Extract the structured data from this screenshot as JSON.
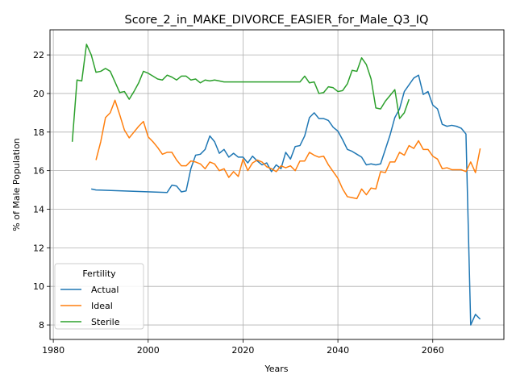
{
  "chart_data": {
    "type": "line",
    "title": "Score_2_in_MAKE_DIVORCE_EASIER_for_Male_Q3_IQ",
    "xlabel": "Years",
    "ylabel": "% of Male Population",
    "xlim": [
      1979.3,
      2075.0
    ],
    "ylim": [
      7.25,
      23.3
    ],
    "xticks": [
      1980,
      2000,
      2020,
      2040,
      2060
    ],
    "yticks": [
      8,
      10,
      12,
      14,
      16,
      18,
      20,
      22
    ],
    "grid": true,
    "legend": {
      "title": "Fertility",
      "placement": "lower-left"
    },
    "series": [
      {
        "name": "Actual",
        "color": "#1f77b4",
        "points": [
          [
            1988,
            15.05
          ],
          [
            1989,
            15.0
          ],
          [
            2004,
            14.87
          ],
          [
            2005,
            15.25
          ],
          [
            2006,
            15.2
          ],
          [
            2007,
            14.9
          ],
          [
            2008,
            14.95
          ],
          [
            2009,
            16.1
          ],
          [
            2010,
            16.8
          ],
          [
            2011,
            16.85
          ],
          [
            2012,
            17.1
          ],
          [
            2013,
            17.8
          ],
          [
            2014,
            17.5
          ],
          [
            2015,
            16.9
          ],
          [
            2016,
            17.1
          ],
          [
            2017,
            16.7
          ],
          [
            2018,
            16.9
          ],
          [
            2019,
            16.7
          ],
          [
            2020,
            16.7
          ],
          [
            2021,
            16.4
          ],
          [
            2022,
            16.75
          ],
          [
            2023,
            16.5
          ],
          [
            2024,
            16.3
          ],
          [
            2025,
            16.4
          ],
          [
            2026,
            15.95
          ],
          [
            2027,
            16.3
          ],
          [
            2028,
            16.1
          ],
          [
            2029,
            16.95
          ],
          [
            2030,
            16.6
          ],
          [
            2031,
            17.25
          ],
          [
            2032,
            17.3
          ],
          [
            2033,
            17.8
          ],
          [
            2034,
            18.75
          ],
          [
            2035,
            19.0
          ],
          [
            2036,
            18.7
          ],
          [
            2037,
            18.7
          ],
          [
            2038,
            18.6
          ],
          [
            2039,
            18.25
          ],
          [
            2040,
            18.05
          ],
          [
            2041,
            17.6
          ],
          [
            2042,
            17.1
          ],
          [
            2043,
            17.0
          ],
          [
            2044,
            16.85
          ],
          [
            2045,
            16.7
          ],
          [
            2046,
            16.3
          ],
          [
            2047,
            16.35
          ],
          [
            2048,
            16.3
          ],
          [
            2049,
            16.35
          ],
          [
            2050,
            17.1
          ],
          [
            2051,
            17.85
          ],
          [
            2052,
            18.75
          ],
          [
            2053,
            19.2
          ],
          [
            2054,
            20.1
          ],
          [
            2055,
            20.45
          ],
          [
            2056,
            20.8
          ],
          [
            2057,
            20.95
          ],
          [
            2058,
            19.95
          ],
          [
            2059,
            20.1
          ],
          [
            2060,
            19.4
          ],
          [
            2061,
            19.2
          ],
          [
            2062,
            18.4
          ],
          [
            2063,
            18.3
          ],
          [
            2064,
            18.35
          ],
          [
            2065,
            18.3
          ],
          [
            2066,
            18.2
          ],
          [
            2067,
            17.9
          ],
          [
            2068,
            8.0
          ],
          [
            2069,
            8.55
          ],
          [
            2070,
            8.3
          ]
        ]
      },
      {
        "name": "Ideal",
        "color": "#ff7f0e",
        "points": [
          [
            1989,
            16.55
          ],
          [
            1990,
            17.5
          ],
          [
            1991,
            18.75
          ],
          [
            1992,
            19.0
          ],
          [
            1993,
            19.65
          ],
          [
            1994,
            18.9
          ],
          [
            1995,
            18.1
          ],
          [
            1996,
            17.7
          ],
          [
            1997,
            18.0
          ],
          [
            1998,
            18.3
          ],
          [
            1999,
            18.55
          ],
          [
            2000,
            17.75
          ],
          [
            2001,
            17.5
          ],
          [
            2002,
            17.2
          ],
          [
            2003,
            16.85
          ],
          [
            2004,
            16.95
          ],
          [
            2005,
            16.95
          ],
          [
            2006,
            16.55
          ],
          [
            2007,
            16.25
          ],
          [
            2008,
            16.25
          ],
          [
            2009,
            16.5
          ],
          [
            2010,
            16.45
          ],
          [
            2011,
            16.35
          ],
          [
            2012,
            16.1
          ],
          [
            2013,
            16.45
          ],
          [
            2014,
            16.35
          ],
          [
            2015,
            16.0
          ],
          [
            2016,
            16.1
          ],
          [
            2017,
            15.65
          ],
          [
            2018,
            15.95
          ],
          [
            2019,
            15.7
          ],
          [
            2020,
            16.6
          ],
          [
            2021,
            16.0
          ],
          [
            2022,
            16.4
          ],
          [
            2023,
            16.55
          ],
          [
            2024,
            16.45
          ],
          [
            2025,
            16.2
          ],
          [
            2026,
            16.1
          ],
          [
            2027,
            15.95
          ],
          [
            2028,
            16.25
          ],
          [
            2029,
            16.15
          ],
          [
            2030,
            16.25
          ],
          [
            2031,
            16.0
          ],
          [
            2032,
            16.5
          ],
          [
            2033,
            16.5
          ],
          [
            2034,
            16.95
          ],
          [
            2035,
            16.8
          ],
          [
            2036,
            16.7
          ],
          [
            2037,
            16.75
          ],
          [
            2038,
            16.3
          ],
          [
            2039,
            15.95
          ],
          [
            2040,
            15.6
          ],
          [
            2041,
            15.05
          ],
          [
            2042,
            14.65
          ],
          [
            2043,
            14.6
          ],
          [
            2044,
            14.55
          ],
          [
            2045,
            15.05
          ],
          [
            2046,
            14.75
          ],
          [
            2047,
            15.1
          ],
          [
            2048,
            15.05
          ],
          [
            2049,
            15.95
          ],
          [
            2050,
            15.9
          ],
          [
            2051,
            16.45
          ],
          [
            2052,
            16.45
          ],
          [
            2053,
            16.95
          ],
          [
            2054,
            16.8
          ],
          [
            2055,
            17.3
          ],
          [
            2056,
            17.15
          ],
          [
            2057,
            17.55
          ],
          [
            2058,
            17.1
          ],
          [
            2059,
            17.1
          ],
          [
            2060,
            16.75
          ],
          [
            2061,
            16.6
          ],
          [
            2062,
            16.1
          ],
          [
            2063,
            16.15
          ],
          [
            2064,
            16.05
          ],
          [
            2065,
            16.05
          ],
          [
            2066,
            16.05
          ],
          [
            2067,
            15.95
          ],
          [
            2068,
            16.45
          ],
          [
            2069,
            15.9
          ],
          [
            2070,
            17.15
          ]
        ]
      },
      {
        "name": "Sterile",
        "color": "#2ca02c",
        "points": [
          [
            1984,
            17.5
          ],
          [
            1985,
            20.7
          ],
          [
            1986,
            20.65
          ],
          [
            1987,
            22.55
          ],
          [
            1988,
            22.0
          ],
          [
            1989,
            21.1
          ],
          [
            1990,
            21.15
          ],
          [
            1991,
            21.3
          ],
          [
            1992,
            21.15
          ],
          [
            1993,
            20.6
          ],
          [
            1994,
            20.05
          ],
          [
            1995,
            20.1
          ],
          [
            1996,
            19.7
          ],
          [
            1997,
            20.1
          ],
          [
            1998,
            20.55
          ],
          [
            1999,
            21.15
          ],
          [
            2000,
            21.05
          ],
          [
            2001,
            20.9
          ],
          [
            2002,
            20.75
          ],
          [
            2003,
            20.7
          ],
          [
            2004,
            20.95
          ],
          [
            2005,
            20.85
          ],
          [
            2006,
            20.7
          ],
          [
            2007,
            20.9
          ],
          [
            2008,
            20.9
          ],
          [
            2009,
            20.7
          ],
          [
            2010,
            20.75
          ],
          [
            2011,
            20.55
          ],
          [
            2012,
            20.7
          ],
          [
            2013,
            20.65
          ],
          [
            2014,
            20.7
          ],
          [
            2015,
            20.65
          ],
          [
            2016,
            20.6
          ],
          [
            2017,
            20.6
          ],
          [
            2018,
            20.6
          ],
          [
            2019,
            20.6
          ],
          [
            2020,
            20.6
          ],
          [
            2021,
            20.6
          ],
          [
            2022,
            20.6
          ],
          [
            2023,
            20.6
          ],
          [
            2024,
            20.6
          ],
          [
            2025,
            20.6
          ],
          [
            2026,
            20.6
          ],
          [
            2027,
            20.6
          ],
          [
            2028,
            20.6
          ],
          [
            2029,
            20.6
          ],
          [
            2030,
            20.6
          ],
          [
            2031,
            20.6
          ],
          [
            2032,
            20.6
          ],
          [
            2033,
            20.9
          ],
          [
            2034,
            20.55
          ],
          [
            2035,
            20.6
          ],
          [
            2036,
            20.0
          ],
          [
            2037,
            20.05
          ],
          [
            2038,
            20.35
          ],
          [
            2039,
            20.3
          ],
          [
            2040,
            20.1
          ],
          [
            2041,
            20.15
          ],
          [
            2042,
            20.5
          ],
          [
            2043,
            21.2
          ],
          [
            2044,
            21.15
          ],
          [
            2045,
            21.85
          ],
          [
            2046,
            21.5
          ],
          [
            2047,
            20.75
          ],
          [
            2048,
            19.25
          ],
          [
            2049,
            19.2
          ],
          [
            2050,
            19.6
          ],
          [
            2051,
            19.9
          ],
          [
            2052,
            20.2
          ],
          [
            2053,
            18.7
          ],
          [
            2054,
            19.0
          ],
          [
            2055,
            19.7
          ]
        ]
      }
    ]
  }
}
